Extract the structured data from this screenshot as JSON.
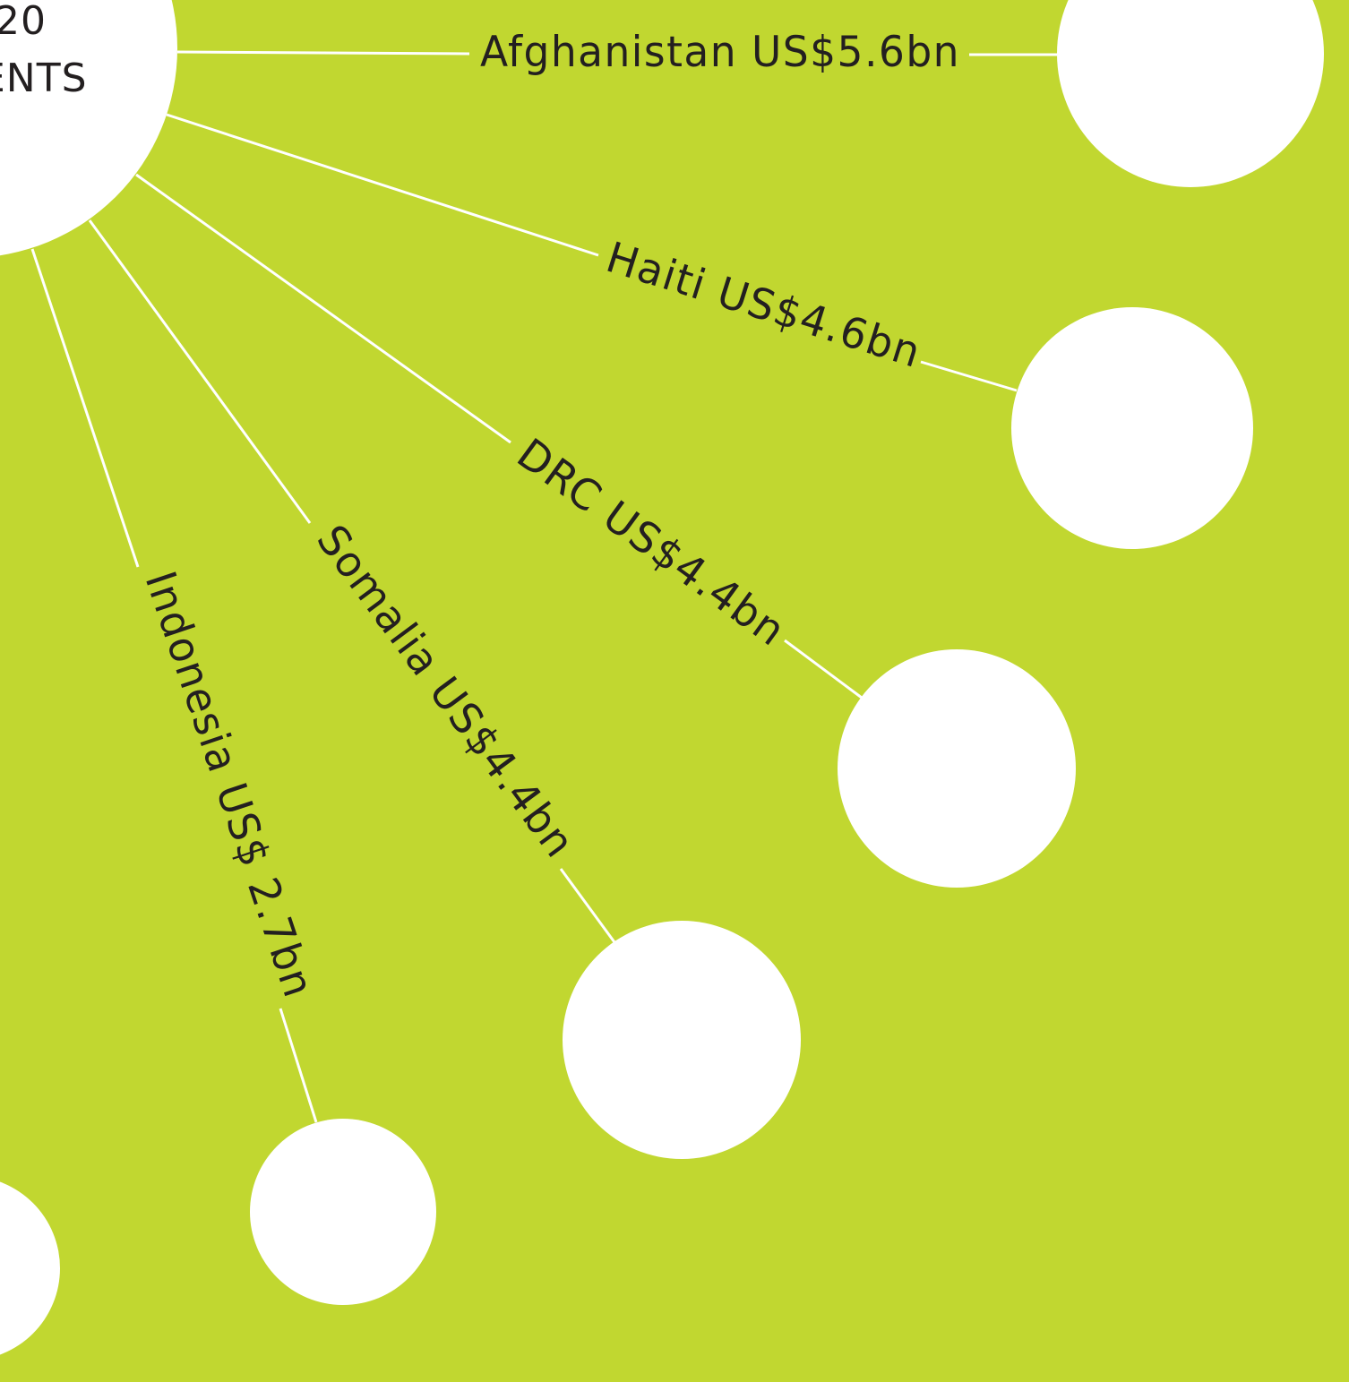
{
  "hub": {
    "line1": "20",
    "line2": "ENTS"
  },
  "recipients": [
    {
      "label": "Afghanistan US$5.6bn"
    },
    {
      "label": "Haiti US$4.6bn"
    },
    {
      "label": "DRC US$4.4bn"
    },
    {
      "label": "Somalia US$4.4bn"
    },
    {
      "label": "Indonesia US$ 2.7bn"
    }
  ],
  "colors": {
    "background": "#c1d730",
    "node": "#ffffff",
    "text": "#231f20"
  }
}
